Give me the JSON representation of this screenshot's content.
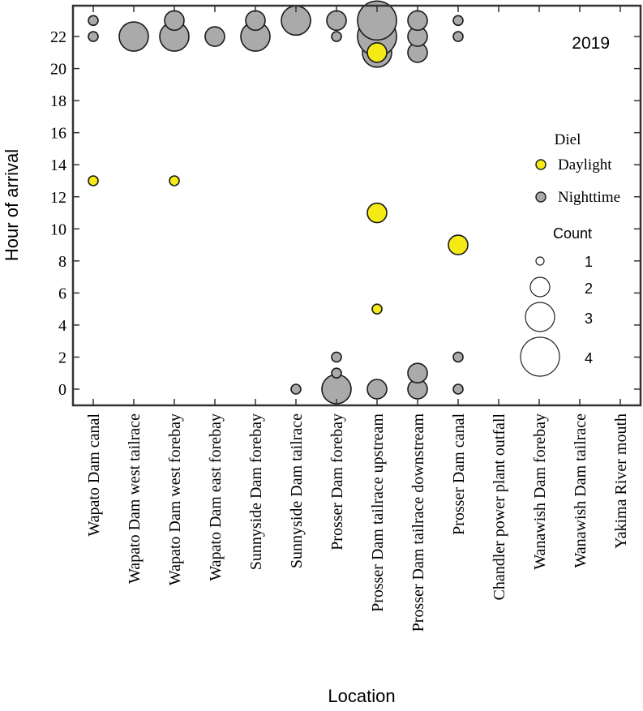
{
  "chart_data": {
    "type": "scatter",
    "subtype": "bubble",
    "title": "",
    "annotation": "2019",
    "xlabel": "Location",
    "ylabel": "Hour of arrival",
    "categories": [
      "Wapato Dam canal",
      "Wapato Dam west tailrace",
      "Wapato Dam west forebay",
      "Wapato Dam east forebay",
      "Sunnyside Dam forebay",
      "Sunnyside Dam tailrace",
      "Prosser Dam forebay",
      "Prosser Dam tailrace upstream",
      "Prosser Dam tailrace downstream",
      "Prosser Dam canal",
      "Chandler power plant outfall",
      "Wanawish Dam forebay",
      "Wanawish Dam tailrace",
      "Yakima River mouth"
    ],
    "ylim": [
      -1,
      23.9
    ],
    "yticks": [
      0,
      2,
      4,
      6,
      8,
      10,
      12,
      14,
      16,
      18,
      20,
      22
    ],
    "grid": false,
    "legend": {
      "placement": "right",
      "diel_title": "Diel",
      "diel_entries": [
        {
          "label": "Daylight",
          "color": "#f5ea14"
        },
        {
          "label": "Nighttime",
          "color": "#aaaaaa"
        }
      ],
      "count_title": "Count",
      "count_entries": [
        1,
        2,
        3,
        4
      ]
    },
    "series": [
      {
        "name": "Nighttime",
        "color": "#aaaaaa",
        "points": [
          {
            "location": "Wapato Dam canal",
            "hour": 23,
            "count": 1
          },
          {
            "location": "Wapato Dam canal",
            "hour": 22,
            "count": 1
          },
          {
            "location": "Wapato Dam west tailrace",
            "hour": 22,
            "count": 3
          },
          {
            "location": "Wapato Dam west forebay",
            "hour": 22,
            "count": 3
          },
          {
            "location": "Wapato Dam west forebay",
            "hour": 23,
            "count": 2
          },
          {
            "location": "Wapato Dam east forebay",
            "hour": 22,
            "count": 2
          },
          {
            "location": "Sunnyside Dam forebay",
            "hour": 22,
            "count": 3
          },
          {
            "location": "Sunnyside Dam forebay",
            "hour": 23,
            "count": 2
          },
          {
            "location": "Sunnyside Dam tailrace",
            "hour": 23,
            "count": 3
          },
          {
            "location": "Sunnyside Dam tailrace",
            "hour": 0,
            "count": 1
          },
          {
            "location": "Prosser Dam forebay",
            "hour": 23,
            "count": 2
          },
          {
            "location": "Prosser Dam forebay",
            "hour": 22,
            "count": 1
          },
          {
            "location": "Prosser Dam forebay",
            "hour": 0,
            "count": 3
          },
          {
            "location": "Prosser Dam forebay",
            "hour": 1,
            "count": 1
          },
          {
            "location": "Prosser Dam forebay",
            "hour": 2,
            "count": 1
          },
          {
            "location": "Prosser Dam tailrace upstream",
            "hour": 21,
            "count": 3
          },
          {
            "location": "Prosser Dam tailrace upstream",
            "hour": 22,
            "count": 4
          },
          {
            "location": "Prosser Dam tailrace upstream",
            "hour": 23,
            "count": 4
          },
          {
            "location": "Prosser Dam tailrace upstream",
            "hour": 0,
            "count": 2
          },
          {
            "location": "Prosser Dam tailrace downstream",
            "hour": 21,
            "count": 2
          },
          {
            "location": "Prosser Dam tailrace downstream",
            "hour": 22,
            "count": 2
          },
          {
            "location": "Prosser Dam tailrace downstream",
            "hour": 23,
            "count": 2
          },
          {
            "location": "Prosser Dam tailrace downstream",
            "hour": 0,
            "count": 2
          },
          {
            "location": "Prosser Dam tailrace downstream",
            "hour": 1,
            "count": 2
          },
          {
            "location": "Prosser Dam canal",
            "hour": 23,
            "count": 1
          },
          {
            "location": "Prosser Dam canal",
            "hour": 22,
            "count": 1
          },
          {
            "location": "Prosser Dam canal",
            "hour": 2,
            "count": 1
          },
          {
            "location": "Prosser Dam canal",
            "hour": 0,
            "count": 1
          }
        ]
      },
      {
        "name": "Daylight",
        "color": "#f5ea14",
        "points": [
          {
            "location": "Wapato Dam canal",
            "hour": 13,
            "count": 1
          },
          {
            "location": "Wapato Dam west forebay",
            "hour": 13,
            "count": 1
          },
          {
            "location": "Prosser Dam tailrace upstream",
            "hour": 21,
            "count": 2
          },
          {
            "location": "Prosser Dam tailrace upstream",
            "hour": 11,
            "count": 2
          },
          {
            "location": "Prosser Dam tailrace upstream",
            "hour": 5,
            "count": 1
          },
          {
            "location": "Prosser Dam canal",
            "hour": 9,
            "count": 2
          }
        ]
      }
    ]
  }
}
